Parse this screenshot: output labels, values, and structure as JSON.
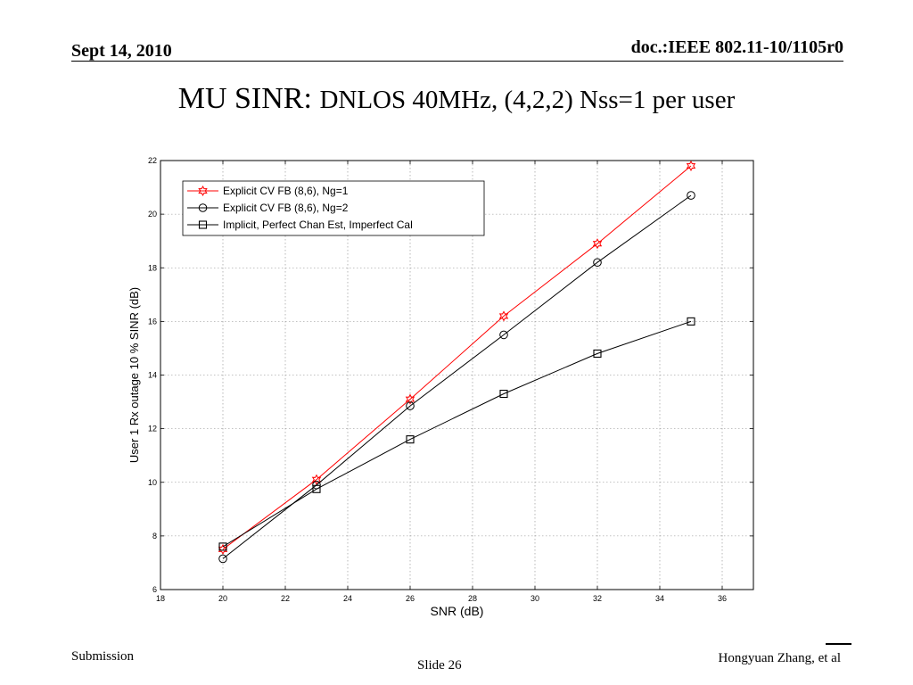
{
  "header": {
    "date": "Sept 14, 2010",
    "doc": "doc.:IEEE 802.11-10/1105r0"
  },
  "slide_title": {
    "main": "MU SINR: ",
    "sub": "DNLOS 40MHz, (4,2,2) Nss=1 per user"
  },
  "footer": {
    "submission": "Submission",
    "slide": "Slide 26",
    "author": "Hongyuan Zhang, et al"
  },
  "chart_data": {
    "type": "line",
    "xlabel": "SNR (dB)",
    "ylabel": "User 1 Rx outage 10 % SINR (dB)",
    "xlim": [
      18,
      37
    ],
    "ylim": [
      6,
      22
    ],
    "xticks": [
      18,
      20,
      22,
      24,
      26,
      28,
      30,
      32,
      34,
      36
    ],
    "yticks": [
      6,
      8,
      10,
      12,
      14,
      16,
      18,
      20,
      22
    ],
    "grid": true,
    "legend_position": "top-left",
    "series": [
      {
        "name": "Explicit CV FB (8,6), Ng=1",
        "color": "#ff0000",
        "marker": "hexagram",
        "x": [
          20,
          23,
          26,
          29,
          32,
          35
        ],
        "values": [
          7.5,
          10.1,
          13.1,
          16.2,
          18.9,
          21.8
        ]
      },
      {
        "name": "Explicit CV FB (8,6), Ng=2",
        "color": "#000000",
        "marker": "circle",
        "x": [
          20,
          23,
          26,
          29,
          32,
          35
        ],
        "values": [
          7.15,
          9.9,
          12.85,
          15.5,
          18.2,
          20.7
        ]
      },
      {
        "name": "Implicit, Perfect Chan Est, Imperfect Cal",
        "color": "#000000",
        "marker": "square",
        "x": [
          20,
          23,
          26,
          29,
          32,
          35
        ],
        "values": [
          7.6,
          9.75,
          11.6,
          13.3,
          14.8,
          16.0
        ]
      }
    ]
  }
}
